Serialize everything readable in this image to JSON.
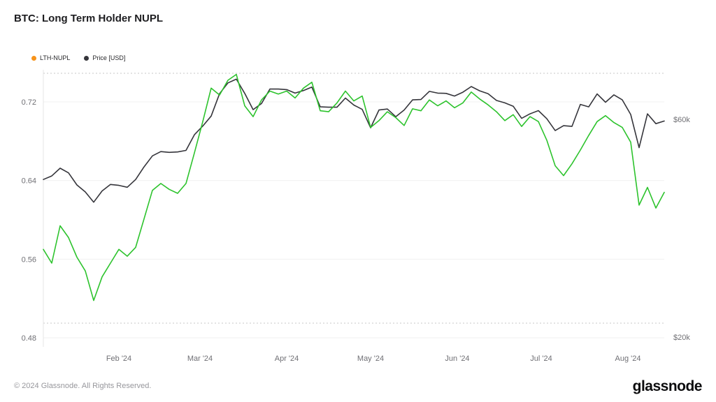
{
  "title": "BTC: Long Term Holder NUPL",
  "legend": [
    {
      "label": "LTH-NUPL",
      "marker_color": "#f7931a"
    },
    {
      "label": "Price [USD]",
      "marker_color": "#35353b"
    }
  ],
  "footer": {
    "copyright": "© 2024 Glassnode. All Rights Reserved.",
    "brand": "glassnode"
  },
  "chart_data": {
    "type": "line",
    "title": "BTC: Long Term Holder NUPL",
    "grid": {
      "horizontal": true,
      "boundary_dotted": true
    },
    "legend_position": "top-left",
    "x": [
      "2024-01-05",
      "2024-01-08",
      "2024-01-11",
      "2024-01-14",
      "2024-01-17",
      "2024-01-20",
      "2024-01-23",
      "2024-01-26",
      "2024-01-29",
      "2024-02-01",
      "2024-02-04",
      "2024-02-07",
      "2024-02-10",
      "2024-02-13",
      "2024-02-16",
      "2024-02-19",
      "2024-02-22",
      "2024-02-25",
      "2024-02-28",
      "2024-03-02",
      "2024-03-05",
      "2024-03-08",
      "2024-03-11",
      "2024-03-14",
      "2024-03-17",
      "2024-03-20",
      "2024-03-23",
      "2024-03-26",
      "2024-03-29",
      "2024-04-01",
      "2024-04-04",
      "2024-04-07",
      "2024-04-10",
      "2024-04-13",
      "2024-04-16",
      "2024-04-19",
      "2024-04-22",
      "2024-04-25",
      "2024-04-28",
      "2024-05-01",
      "2024-05-04",
      "2024-05-07",
      "2024-05-10",
      "2024-05-13",
      "2024-05-16",
      "2024-05-19",
      "2024-05-22",
      "2024-05-25",
      "2024-05-28",
      "2024-05-31",
      "2024-06-03",
      "2024-06-06",
      "2024-06-09",
      "2024-06-12",
      "2024-06-15",
      "2024-06-18",
      "2024-06-21",
      "2024-06-24",
      "2024-06-27",
      "2024-06-30",
      "2024-07-03",
      "2024-07-06",
      "2024-07-09",
      "2024-07-12",
      "2024-07-15",
      "2024-07-18",
      "2024-07-21",
      "2024-07-24",
      "2024-07-27",
      "2024-07-30",
      "2024-08-02",
      "2024-08-05",
      "2024-08-08",
      "2024-08-11",
      "2024-08-14"
    ],
    "series": [
      {
        "name": "LTH-NUPL",
        "yaxis": "left",
        "color": "#2dc32d",
        "values": [
          0.57,
          0.556,
          0.594,
          0.582,
          0.562,
          0.548,
          0.518,
          0.542,
          0.556,
          0.57,
          0.563,
          0.572,
          0.601,
          0.63,
          0.637,
          0.631,
          0.627,
          0.637,
          0.668,
          0.7,
          0.734,
          0.727,
          0.742,
          0.748,
          0.716,
          0.705,
          0.722,
          0.731,
          0.728,
          0.731,
          0.724,
          0.734,
          0.74,
          0.711,
          0.71,
          0.719,
          0.731,
          0.721,
          0.726,
          0.694,
          0.701,
          0.71,
          0.704,
          0.696,
          0.713,
          0.711,
          0.722,
          0.716,
          0.721,
          0.714,
          0.719,
          0.73,
          0.723,
          0.717,
          0.71,
          0.701,
          0.707,
          0.695,
          0.705,
          0.7,
          0.681,
          0.655,
          0.645,
          0.657,
          0.671,
          0.686,
          0.7,
          0.706,
          0.699,
          0.694,
          0.679,
          0.615,
          0.633,
          0.612,
          0.628
        ]
      },
      {
        "name": "Price [USD]",
        "yaxis": "right",
        "color": "#35353b",
        "values": [
          44300,
          45100,
          46900,
          45800,
          43100,
          41600,
          39500,
          41800,
          43200,
          43000,
          42600,
          44300,
          47200,
          49900,
          51000,
          50800,
          50900,
          51300,
          55500,
          58000,
          61000,
          68300,
          72100,
          73500,
          68400,
          63000,
          65000,
          69900,
          69900,
          69700,
          68500,
          69400,
          70600,
          63900,
          63800,
          63800,
          66800,
          64500,
          63100,
          57500,
          62900,
          63200,
          60800,
          62900,
          66200,
          66300,
          69100,
          68500,
          68400,
          67500,
          68800,
          70800,
          69300,
          68300,
          66000,
          65200,
          64100,
          60300,
          61700,
          62700,
          60200,
          56700,
          58100,
          57900,
          64700,
          63900,
          68200,
          65400,
          67900,
          66200,
          61500,
          52000,
          61700,
          58700,
          59500
        ]
      }
    ],
    "left_axis": {
      "scale": "linear",
      "ticks": [
        {
          "value": 0.48,
          "label": "0.48"
        },
        {
          "value": 0.56,
          "label": "0.56"
        },
        {
          "value": 0.64,
          "label": "0.64"
        },
        {
          "value": 0.72,
          "label": "0.72"
        }
      ]
    },
    "right_axis": {
      "scale": "log",
      "ticks": [
        {
          "value": 60000,
          "label": "$60k"
        },
        {
          "value": 20000,
          "label": "$20k"
        }
      ]
    },
    "x_ticks": [
      {
        "date": "2024-02-01",
        "label": "Feb '24"
      },
      {
        "date": "2024-03-01",
        "label": "Mar '24"
      },
      {
        "date": "2024-04-01",
        "label": "Apr '24"
      },
      {
        "date": "2024-05-01",
        "label": "May '24"
      },
      {
        "date": "2024-06-01",
        "label": "Jun '24"
      },
      {
        "date": "2024-07-01",
        "label": "Jul '24"
      },
      {
        "date": "2024-08-01",
        "label": "Aug '24"
      }
    ]
  }
}
